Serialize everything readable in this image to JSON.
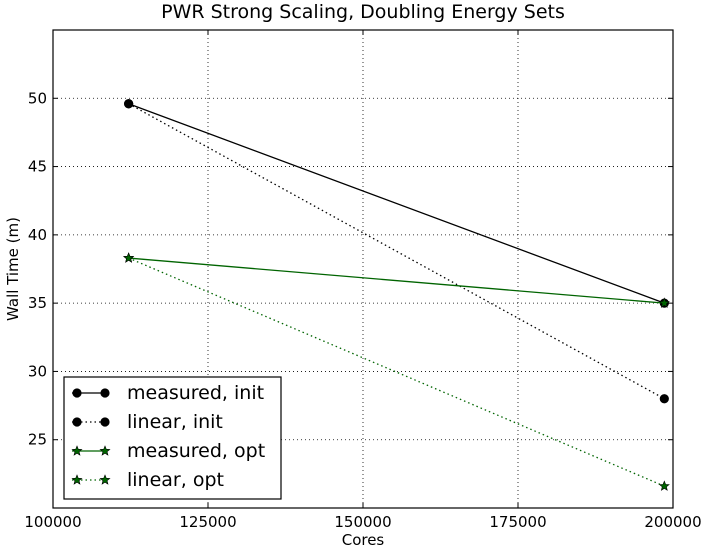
{
  "chart_data": {
    "type": "line",
    "title": "PWR Strong Scaling, Doubling Energy Sets",
    "xlabel": "Cores",
    "ylabel": "Wall Time (m)",
    "xlim": [
      100000,
      200000
    ],
    "ylim": [
      20,
      55
    ],
    "xticks": [
      100000,
      125000,
      150000,
      175000,
      200000
    ],
    "xtick_labels": [
      "100000",
      "125000",
      "150000",
      "175000",
      "200000"
    ],
    "yticks": [
      25,
      30,
      35,
      40,
      45,
      50
    ],
    "ytick_labels": [
      "25",
      "30",
      "35",
      "40",
      "45",
      "50"
    ],
    "grid": true,
    "legend_location": "lower-left",
    "series": [
      {
        "name": "measured, init",
        "color": "#000000",
        "linestyle": "solid",
        "marker": "circle",
        "x": [
          112200,
          198600
        ],
        "y": [
          49.6,
          35.0
        ]
      },
      {
        "name": "linear, init",
        "color": "#000000",
        "linestyle": "dotted",
        "marker": "circle",
        "x": [
          112200,
          198600
        ],
        "y": [
          49.6,
          28.0
        ]
      },
      {
        "name": "measured, opt",
        "color": "#006400",
        "linestyle": "solid",
        "marker": "star",
        "x": [
          112200,
          198600
        ],
        "y": [
          38.3,
          35.0
        ]
      },
      {
        "name": "linear, opt",
        "color": "#006400",
        "linestyle": "dotted",
        "marker": "star",
        "x": [
          112200,
          198600
        ],
        "y": [
          38.3,
          21.6
        ]
      }
    ]
  }
}
